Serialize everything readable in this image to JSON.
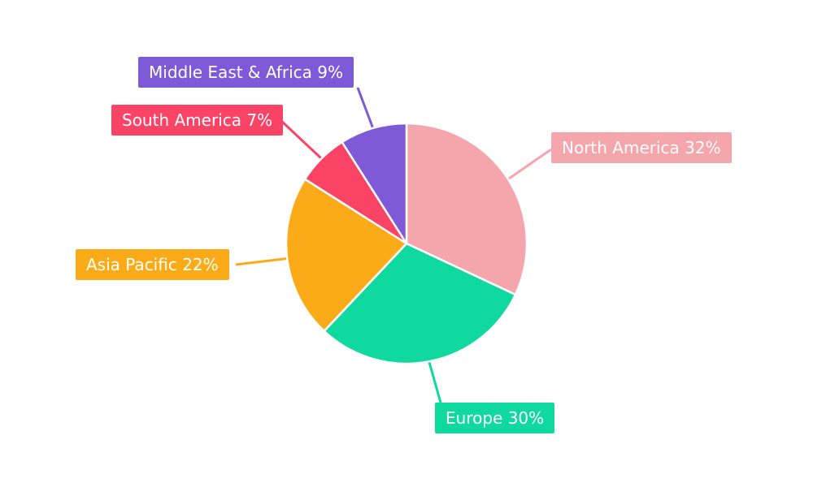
{
  "chart_data": {
    "type": "pie",
    "title": "",
    "direction": "clockwise",
    "start_angle_deg": 0,
    "unit": "%",
    "legend": "none",
    "labels_style": "callout-boxes",
    "background": "#ffffff",
    "label_text_color": "#ffffff",
    "slice_border_color": "#ffffff",
    "categories": [
      "North America",
      "Europe",
      "Asia Pacific",
      "South America",
      "Middle East & Africa"
    ],
    "values": [
      32,
      30,
      22,
      7,
      9
    ],
    "slices": [
      {
        "label": "North America",
        "value": 32,
        "display_label": "North America 32%",
        "color": "#f5a6ad"
      },
      {
        "label": "Europe",
        "value": 30,
        "display_label": "Europe 30%",
        "color": "#10d9a0"
      },
      {
        "label": "Asia Pacific",
        "value": 22,
        "display_label": "Asia Pacific 22%",
        "color": "#fbab17"
      },
      {
        "label": "South America",
        "value": 7,
        "display_label": "South America 7%",
        "color": "#fa4365"
      },
      {
        "label": "Middle East & Africa",
        "value": 9,
        "display_label": "Middle East & Africa 9%",
        "color": "#7e59d8"
      }
    ]
  }
}
